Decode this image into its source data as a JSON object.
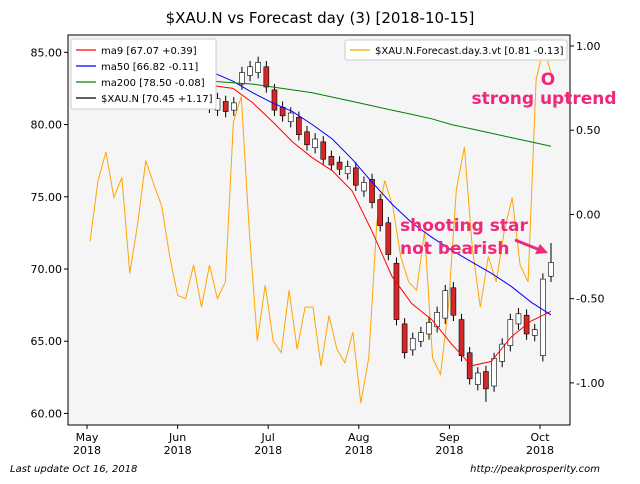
{
  "chart_data": {
    "type": "candlestick",
    "title": "$XAU.N vs Forecast day (3)  [2018-10-15]",
    "xticks": [
      [
        "May",
        "2018"
      ],
      [
        "Jun",
        "2018"
      ],
      [
        "Jul",
        "2018"
      ],
      [
        "Aug",
        "2018"
      ],
      [
        "Sep",
        "2018"
      ],
      [
        "Oct",
        "2018"
      ]
    ],
    "ylim": [
      59.2,
      86.2
    ],
    "yticks": [
      {
        "value": 60,
        "label": "60.00"
      },
      {
        "value": 65,
        "label": "65.00"
      },
      {
        "value": 70,
        "label": "70.00"
      },
      {
        "value": 75,
        "label": "75.00"
      },
      {
        "value": 80,
        "label": "80.00"
      },
      {
        "value": 85,
        "label": "85.00"
      }
    ],
    "y2lim": [
      -1.25,
      1.065
    ],
    "y2ticks": [
      {
        "value": -1,
        "label": "-1.00"
      },
      {
        "value": -0.5,
        "label": "-0.50"
      },
      {
        "value": 0,
        "label": "0.00"
      },
      {
        "value": 0.5,
        "label": "0.50"
      },
      {
        "value": 1,
        "label": "1.00"
      }
    ],
    "candles": {
      "name": "$XAU.N [70.45 +1.17]",
      "color": "#000000",
      "up_color": "#ffffff",
      "down_color": "#d62728",
      "open": [
        82.4,
        81.8,
        82.2,
        81.9,
        81.0,
        81.6,
        81.0,
        82.8,
        83.4,
        83.6,
        84.0,
        82.4,
        81.2,
        80.2,
        80.5,
        79.5,
        78.4,
        78.8,
        77.8,
        77.4,
        76.6,
        77.0,
        75.4,
        76.2,
        74.8,
        73.2,
        70.4,
        66.2,
        64.4,
        65.0,
        65.5,
        66.0,
        66.6,
        68.7,
        66.5,
        64.2,
        62.0,
        62.9,
        61.9,
        63.6,
        64.7,
        66.2,
        66.8,
        65.4,
        64.0,
        69.5
      ],
      "high": [
        82.8,
        82.7,
        82.6,
        82.3,
        82.2,
        82.0,
        81.9,
        84.0,
        84.4,
        84.7,
        84.4,
        82.8,
        81.6,
        81.2,
        80.9,
        79.9,
        79.4,
        79.2,
        78.2,
        77.8,
        77.5,
        77.4,
        76.4,
        76.6,
        75.2,
        73.6,
        70.8,
        66.6,
        65.6,
        66.0,
        66.7,
        67.4,
        68.9,
        69.1,
        66.9,
        64.6,
        63.2,
        63.3,
        64.2,
        65.2,
        66.9,
        67.3,
        67.2,
        66.2,
        69.7,
        71.8
      ],
      "low": [
        81.6,
        81.4,
        81.2,
        80.8,
        80.6,
        80.5,
        80.6,
        82.4,
        83.0,
        83.2,
        82.2,
        80.6,
        80.2,
        79.8,
        78.9,
        78.2,
        78.0,
        77.2,
        76.8,
        76.5,
        76.2,
        75.4,
        75.0,
        74.2,
        72.6,
        70.6,
        66.1,
        63.8,
        64.0,
        64.6,
        65.1,
        65.6,
        66.2,
        66.4,
        63.6,
        62.0,
        61.6,
        60.8,
        61.5,
        63.2,
        64.3,
        65.8,
        65.1,
        65.0,
        63.6,
        69.1
      ],
      "close": [
        82.0,
        82.3,
        81.6,
        81.2,
        81.8,
        80.9,
        81.5,
        83.6,
        84.0,
        84.3,
        82.6,
        81.0,
        80.6,
        80.8,
        79.3,
        78.6,
        79.0,
        77.6,
        77.2,
        76.9,
        77.1,
        75.8,
        76.0,
        74.6,
        73.0,
        71.0,
        66.5,
        64.2,
        65.2,
        65.6,
        66.3,
        67.0,
        68.5,
        66.8,
        64.0,
        62.4,
        62.8,
        61.7,
        63.8,
        64.8,
        66.5,
        66.9,
        65.5,
        65.8,
        69.3,
        70.45
      ]
    },
    "series": [
      {
        "name": "ma9 [67.07 +0.39]",
        "color": "#ff0000",
        "values": [
          82.7,
          82.5,
          81.5,
          80.2,
          78.8,
          77.7,
          76.8,
          75.4,
          72.6,
          69.5,
          67.6,
          66.5,
          64.8,
          63.3,
          63.6,
          65.3,
          66.4,
          67.07
        ]
      },
      {
        "name": "ma50 [66.82 -0.11]",
        "color": "#0000ff",
        "values": [
          83.6,
          83.0,
          82.2,
          81.5,
          80.9,
          80.0,
          79.0,
          77.6,
          76.0,
          74.5,
          73.2,
          72.2,
          71.3,
          70.5,
          69.7,
          68.8,
          67.7,
          66.82
        ]
      },
      {
        "name": "ma200 [78.50 -0.08]",
        "color": "#008000",
        "values": [
          83.0,
          82.9,
          82.8,
          82.6,
          82.4,
          82.2,
          81.9,
          81.6,
          81.3,
          81.0,
          80.7,
          80.4,
          80.0,
          79.7,
          79.4,
          79.1,
          78.8,
          78.5
        ]
      },
      {
        "name": "$XAU.N.Forecast.day.3.vt [0.81 -0.13]",
        "color": "#ffa500",
        "axis": "y2",
        "values": [
          -0.16,
          0.2,
          0.37,
          0.1,
          0.22,
          -0.35,
          -0.05,
          0.32,
          0.18,
          0.05,
          -0.25,
          -0.48,
          -0.5,
          -0.3,
          -0.55,
          -0.3,
          -0.5,
          -0.4,
          0.55,
          0.7,
          -0.1,
          -0.75,
          -0.42,
          -0.75,
          -0.82,
          -0.45,
          -0.8,
          -0.55,
          -0.55,
          -0.9,
          -0.6,
          -0.8,
          -0.88,
          -0.7,
          -1.12,
          -0.85,
          -0.05,
          0.2,
          0.05,
          -0.25,
          -0.4,
          -0.45,
          -0.1,
          -0.85,
          -0.95,
          -0.55,
          0.15,
          0.4,
          -0.2,
          -0.55,
          -0.25,
          -0.4,
          -0.1,
          0.1,
          -0.3,
          -0.4,
          0.8,
          1.0,
          0.81
        ]
      }
    ],
    "annotations": [
      [
        "shooting star",
        "not bearish"
      ],
      [
        "O",
        "strong uptrend"
      ]
    ],
    "footer_left": "Last update Oct 16, 2018",
    "footer_right": "http://peakprosperity.com"
  }
}
